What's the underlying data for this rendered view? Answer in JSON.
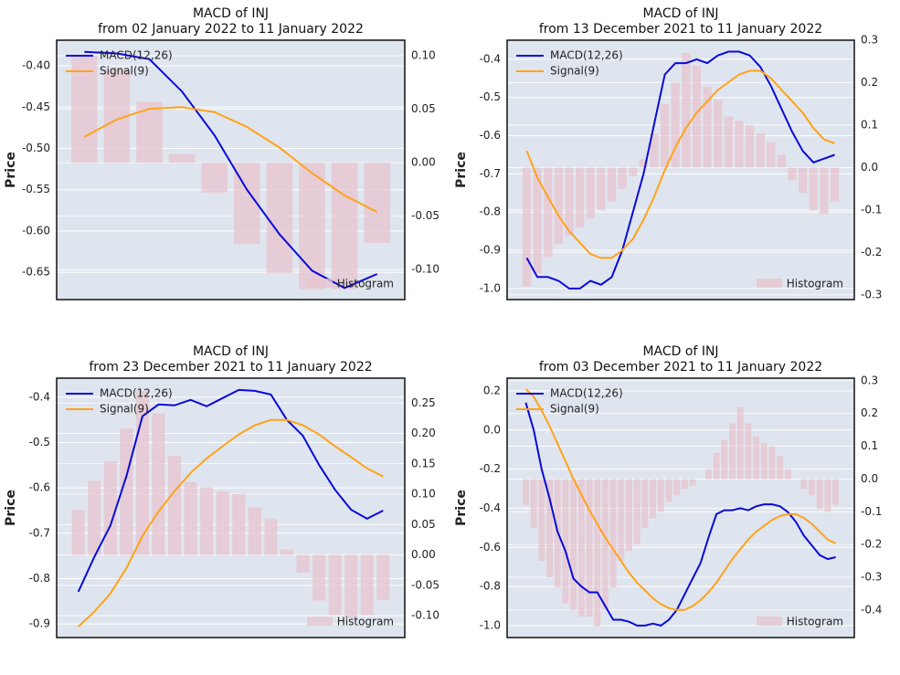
{
  "chart_data": [
    {
      "type": "line",
      "title": "MACD of INJ",
      "subtitle": "from 02 January 2022 to 11 January 2022",
      "ylabel": "Price",
      "grid": true,
      "ylim": [
        -0.683,
        -0.369
      ],
      "yticks": [
        {
          "value": -0.4,
          "label": "-0.40"
        },
        {
          "value": -0.45,
          "label": "-0.45"
        },
        {
          "value": -0.5,
          "label": "-0.50"
        },
        {
          "value": -0.55,
          "label": "-0.55"
        },
        {
          "value": -0.6,
          "label": "-0.60"
        },
        {
          "value": -0.65,
          "label": "-0.65"
        }
      ],
      "y2lim": [
        -0.128,
        0.1145
      ],
      "y2ticks": [
        {
          "value": 0.1,
          "label": "0.10"
        },
        0.05,
        {
          "value": 0,
          "label": "0.00"
        },
        -0.05,
        {
          "value": -0.1,
          "label": "-0.10"
        }
      ],
      "series": [
        {
          "name": "MACD(12,26)",
          "color": "#0a0ad8",
          "values": [
            -0.383,
            -0.385,
            -0.392,
            -0.431,
            -0.484,
            -0.55,
            -0.604,
            -0.648,
            -0.669,
            -0.652
          ]
        },
        {
          "name": "Signal(9)",
          "color": "#ffa31a",
          "values": [
            -0.486,
            -0.465,
            -0.452,
            -0.45,
            -0.456,
            -0.474,
            -0.499,
            -0.53,
            -0.557,
            -0.577
          ]
        },
        {
          "name": "Histogram",
          "color": "#e7c3cd",
          "type": "bar",
          "axis": "y2",
          "values": [
            0.1,
            0.087,
            0.057,
            0.008,
            -0.028,
            -0.076,
            -0.103,
            -0.118,
            -0.118,
            -0.075
          ]
        }
      ]
    },
    {
      "type": "line",
      "title": "MACD of INJ",
      "subtitle": "from 13 December 2021 to 11 January 2022",
      "ylabel": "Price",
      "grid": true,
      "ylim": [
        -1.029,
        -0.35
      ],
      "yticks": [
        -0.4,
        -0.5,
        -0.6,
        -0.7,
        -0.8,
        -0.9,
        {
          "value": -1,
          "label": "-1.0"
        }
      ],
      "y2lim": [
        -0.311,
        0.3
      ],
      "y2ticks": [
        0.3,
        0.2,
        0.1,
        {
          "value": 0,
          "label": "0.0"
        },
        -0.1,
        -0.2,
        -0.3
      ],
      "series": [
        {
          "name": "MACD(12,26)",
          "color": "#0a0ad8",
          "values": [
            -0.92,
            -0.97,
            -0.97,
            -0.98,
            -1.0,
            -1.0,
            -0.98,
            -0.99,
            -0.97,
            -0.9,
            -0.8,
            -0.7,
            -0.57,
            -0.44,
            -0.41,
            -0.41,
            -0.4,
            -0.41,
            -0.39,
            -0.38,
            -0.38,
            -0.39,
            -0.42,
            -0.47,
            -0.53,
            -0.59,
            -0.64,
            -0.67,
            -0.66,
            -0.65
          ]
        },
        {
          "name": "Signal(9)",
          "color": "#ffa31a",
          "values": [
            -0.64,
            -0.71,
            -0.76,
            -0.81,
            -0.85,
            -0.88,
            -0.91,
            -0.92,
            -0.92,
            -0.9,
            -0.87,
            -0.82,
            -0.76,
            -0.69,
            -0.63,
            -0.58,
            -0.54,
            -0.51,
            -0.48,
            -0.46,
            -0.44,
            -0.43,
            -0.43,
            -0.45,
            -0.48,
            -0.51,
            -0.54,
            -0.58,
            -0.61,
            -0.62
          ]
        },
        {
          "name": "Histogram",
          "color": "#e7c3cd",
          "type": "bar",
          "axis": "y2",
          "values": [
            -0.28,
            -0.25,
            -0.21,
            -0.18,
            -0.16,
            -0.14,
            -0.12,
            -0.1,
            -0.08,
            -0.05,
            -0.02,
            0.02,
            0.08,
            0.15,
            0.2,
            0.27,
            0.24,
            0.19,
            0.16,
            0.12,
            0.11,
            0.1,
            0.08,
            0.06,
            0.03,
            -0.03,
            -0.06,
            -0.1,
            -0.11,
            -0.08
          ]
        }
      ]
    },
    {
      "type": "line",
      "title": "MACD of INJ",
      "subtitle": "from 23 December 2021 to 11 January 2022",
      "ylabel": "Price",
      "grid": true,
      "ylim": [
        -0.93,
        -0.358
      ],
      "yticks": [
        -0.4,
        -0.5,
        -0.6,
        -0.7,
        -0.8,
        -0.9
      ],
      "y2lim": [
        -0.136,
        0.291
      ],
      "y2ticks": [
        0.25,
        {
          "value": 0.2,
          "label": "0.20"
        },
        0.15,
        {
          "value": 0.1,
          "label": "0.10"
        },
        0.05,
        {
          "value": 0,
          "label": "0.00"
        },
        -0.05,
        {
          "value": -0.1,
          "label": "-0.10"
        }
      ],
      "series": [
        {
          "name": "MACD(12,26)",
          "color": "#0a0ad8",
          "values": [
            -0.829,
            -0.752,
            -0.683,
            -0.574,
            -0.442,
            -0.416,
            -0.418,
            -0.406,
            -0.42,
            -0.402,
            -0.384,
            -0.386,
            -0.394,
            -0.45,
            -0.485,
            -0.549,
            -0.604,
            -0.648,
            -0.668,
            -0.65
          ]
        },
        {
          "name": "Signal(9)",
          "color": "#ffa31a",
          "values": [
            -0.906,
            -0.873,
            -0.833,
            -0.777,
            -0.706,
            -0.652,
            -0.607,
            -0.567,
            -0.535,
            -0.508,
            -0.482,
            -0.462,
            -0.45,
            -0.45,
            -0.462,
            -0.482,
            -0.508,
            -0.532,
            -0.557,
            -0.575
          ]
        },
        {
          "name": "Histogram",
          "color": "#e7c3cd",
          "type": "bar",
          "axis": "y2",
          "values": [
            0.074,
            0.122,
            0.154,
            0.208,
            0.27,
            0.233,
            0.163,
            0.12,
            0.111,
            0.105,
            0.1,
            0.078,
            0.059,
            0.009,
            -0.029,
            -0.075,
            -0.099,
            -0.104,
            -0.099,
            -0.074
          ]
        }
      ]
    },
    {
      "type": "line",
      "title": "MACD of INJ",
      "subtitle": "from 03 December 2021 to 11 January 2022",
      "ylabel": "Price",
      "grid": true,
      "ylim": [
        -1.061,
        0.265
      ],
      "yticks": [
        0.2,
        {
          "value": 0,
          "label": "0.0"
        },
        -0.2,
        -0.4,
        -0.6,
        -0.8,
        {
          "value": -1,
          "label": "-1.0"
        }
      ],
      "y2lim": [
        -0.484,
        0.308
      ],
      "y2ticks": [
        0.3,
        0.2,
        0.1,
        {
          "value": 0,
          "label": "0.0"
        },
        -0.1,
        -0.2,
        -0.3,
        -0.4
      ],
      "series": [
        {
          "name": "MACD(12,26)",
          "color": "#0a0ad8",
          "values": [
            0.14,
            0.0,
            -0.2,
            -0.35,
            -0.52,
            -0.62,
            -0.76,
            -0.8,
            -0.83,
            -0.83,
            -0.9,
            -0.97,
            -0.97,
            -0.98,
            -1.0,
            -1.0,
            -0.99,
            -1.0,
            -0.97,
            -0.92,
            -0.84,
            -0.76,
            -0.68,
            -0.55,
            -0.43,
            -0.41,
            -0.41,
            -0.4,
            -0.41,
            -0.39,
            -0.38,
            -0.38,
            -0.39,
            -0.42,
            -0.47,
            -0.54,
            -0.59,
            -0.64,
            -0.66,
            -0.65
          ]
        },
        {
          "name": "Signal(9)",
          "color": "#ffa31a",
          "values": [
            0.21,
            0.17,
            0.1,
            0.02,
            -0.07,
            -0.16,
            -0.25,
            -0.33,
            -0.41,
            -0.48,
            -0.55,
            -0.61,
            -0.67,
            -0.73,
            -0.78,
            -0.82,
            -0.86,
            -0.89,
            -0.91,
            -0.92,
            -0.92,
            -0.9,
            -0.87,
            -0.83,
            -0.78,
            -0.72,
            -0.66,
            -0.61,
            -0.56,
            -0.52,
            -0.49,
            -0.46,
            -0.44,
            -0.43,
            -0.43,
            -0.45,
            -0.48,
            -0.52,
            -0.56,
            -0.58
          ]
        },
        {
          "name": "Histogram",
          "color": "#e7c3cd",
          "type": "bar",
          "axis": "y2",
          "values": [
            -0.08,
            -0.15,
            -0.25,
            -0.3,
            -0.33,
            -0.38,
            -0.4,
            -0.42,
            -0.42,
            -0.45,
            -0.4,
            -0.33,
            -0.25,
            -0.22,
            -0.2,
            -0.15,
            -0.12,
            -0.1,
            -0.07,
            -0.05,
            -0.03,
            -0.02,
            0.0,
            0.03,
            0.08,
            0.12,
            0.17,
            0.22,
            0.17,
            0.13,
            0.11,
            0.1,
            0.07,
            0.03,
            0.0,
            -0.03,
            -0.05,
            -0.09,
            -0.1,
            -0.08
          ]
        }
      ]
    }
  ]
}
